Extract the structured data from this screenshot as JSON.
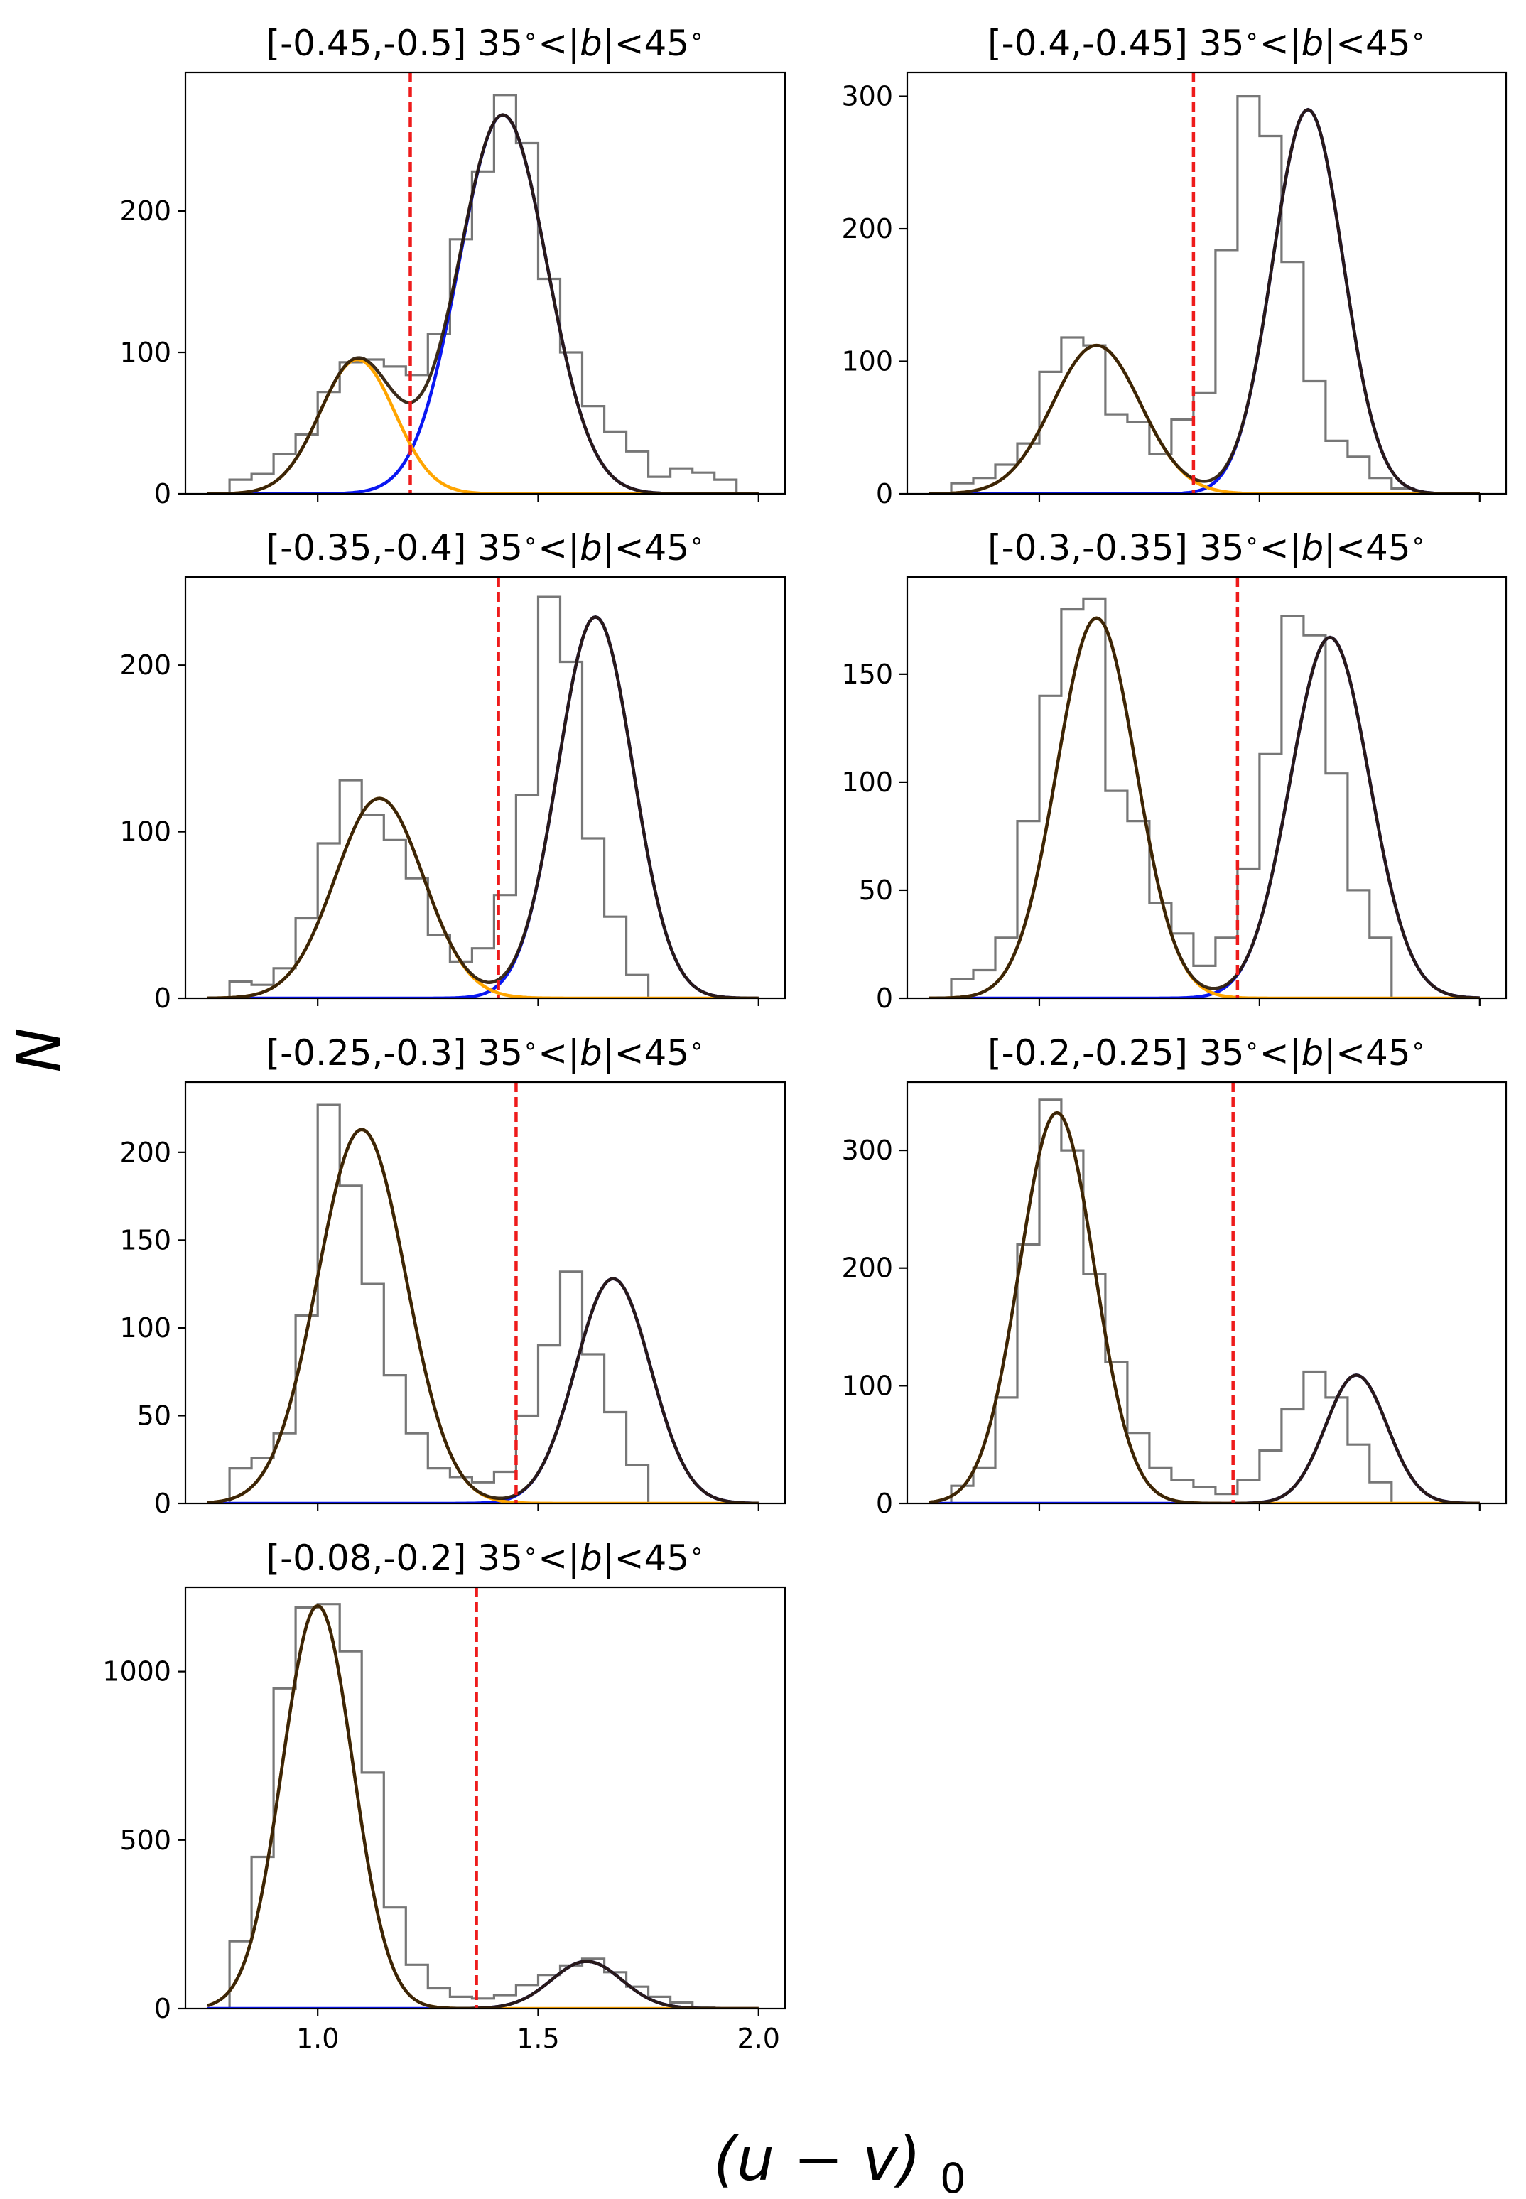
{
  "figure": {
    "ylabel": "N",
    "xlabel_main": "(u − v)",
    "xlabel_sub": "0"
  },
  "chart_data": [
    {
      "type": "histogram",
      "title": "[-0.45,-0.5] 35$^\\circ$<|$b$|<45$^\\circ$",
      "title_parts": {
        "range": "[-0.45,-0.5]",
        "lat": "35",
        "b": "b",
        "lat2": "45"
      },
      "xlim": [
        0.7,
        2.06
      ],
      "ylim": [
        0,
        298
      ],
      "yticks": [
        0,
        100,
        200
      ],
      "x_tick_labels_shown": false,
      "divider_x": 1.21,
      "bin_edges": [
        0.75,
        0.8,
        0.85,
        0.9,
        0.95,
        1.0,
        1.05,
        1.1,
        1.15,
        1.2,
        1.25,
        1.3,
        1.35,
        1.4,
        1.45,
        1.5,
        1.55,
        1.6,
        1.65,
        1.7,
        1.75,
        1.8,
        1.85,
        1.9,
        1.95,
        2.0
      ],
      "counts": [
        0,
        10,
        14,
        28,
        42,
        72,
        93,
        95,
        90,
        84,
        113,
        180,
        228,
        282,
        248,
        152,
        100,
        62,
        44,
        30,
        12,
        18,
        15,
        10,
        0
      ],
      "components": [
        {
          "name": "bluer",
          "mu": 1.09,
          "sigma": 0.085,
          "amplitude": 95
        },
        {
          "name": "redder",
          "mu": 1.42,
          "sigma": 0.1,
          "amplitude": 268
        }
      ]
    },
    {
      "type": "histogram",
      "title": "[-0.4,-0.45] 35$^\\circ$<|$b$|<45$^\\circ$",
      "title_parts": {
        "range": "[-0.4,-0.45]",
        "lat": "35",
        "b": "b",
        "lat2": "45"
      },
      "xlim": [
        0.7,
        2.06
      ],
      "ylim": [
        0,
        318
      ],
      "yticks": [
        0,
        100,
        200,
        300
      ],
      "x_tick_labels_shown": false,
      "divider_x": 1.35,
      "bin_edges": [
        0.75,
        0.8,
        0.85,
        0.9,
        0.95,
        1.0,
        1.05,
        1.1,
        1.15,
        1.2,
        1.25,
        1.3,
        1.35,
        1.4,
        1.45,
        1.5,
        1.55,
        1.6,
        1.65,
        1.7,
        1.75,
        1.8,
        1.85,
        1.9,
        1.95,
        2.0
      ],
      "counts": [
        0,
        8,
        12,
        22,
        38,
        92,
        118,
        112,
        60,
        54,
        30,
        56,
        76,
        184,
        300,
        270,
        175,
        85,
        40,
        28,
        12,
        4,
        0,
        0,
        0
      ],
      "components": [
        {
          "name": "bluer",
          "mu": 1.13,
          "sigma": 0.1,
          "amplitude": 112
        },
        {
          "name": "redder",
          "mu": 1.61,
          "sigma": 0.08,
          "amplitude": 290
        }
      ]
    },
    {
      "type": "histogram",
      "title": "[-0.35,-0.4] 35$^\\circ$<|$b$|<45$^\\circ$",
      "title_parts": {
        "range": "[-0.35,-0.4]",
        "lat": "35",
        "b": "b",
        "lat2": "45"
      },
      "xlim": [
        0.7,
        2.06
      ],
      "ylim": [
        0,
        253
      ],
      "yticks": [
        0,
        100,
        200
      ],
      "x_tick_labels_shown": false,
      "divider_x": 1.41,
      "bin_edges": [
        0.75,
        0.8,
        0.85,
        0.9,
        0.95,
        1.0,
        1.05,
        1.1,
        1.15,
        1.2,
        1.25,
        1.3,
        1.35,
        1.4,
        1.45,
        1.5,
        1.55,
        1.6,
        1.65,
        1.7,
        1.75,
        1.8,
        1.85,
        1.9,
        1.95,
        2.0
      ],
      "counts": [
        0,
        10,
        8,
        18,
        48,
        93,
        131,
        110,
        95,
        72,
        38,
        22,
        30,
        62,
        122,
        241,
        202,
        96,
        49,
        14,
        0,
        0,
        0,
        0,
        0
      ],
      "components": [
        {
          "name": "bluer",
          "mu": 1.14,
          "sigma": 0.1,
          "amplitude": 120
        },
        {
          "name": "redder",
          "mu": 1.63,
          "sigma": 0.085,
          "amplitude": 229
        }
      ]
    },
    {
      "type": "histogram",
      "title": "[-0.3,-0.35] 35$^\\circ$<|$b$|<45$^\\circ$",
      "title_parts": {
        "range": "[-0.3,-0.35]",
        "lat": "35",
        "b": "b",
        "lat2": "45"
      },
      "xlim": [
        0.7,
        2.06
      ],
      "ylim": [
        0,
        195
      ],
      "yticks": [
        0,
        50,
        100,
        150
      ],
      "x_tick_labels_shown": false,
      "divider_x": 1.45,
      "bin_edges": [
        0.75,
        0.8,
        0.85,
        0.9,
        0.95,
        1.0,
        1.05,
        1.1,
        1.15,
        1.2,
        1.25,
        1.3,
        1.35,
        1.4,
        1.45,
        1.5,
        1.55,
        1.6,
        1.65,
        1.7,
        1.75,
        1.8,
        1.85,
        1.9,
        1.95,
        2.0
      ],
      "counts": [
        0,
        9,
        13,
        28,
        82,
        140,
        180,
        185,
        96,
        82,
        44,
        30,
        15,
        28,
        60,
        113,
        177,
        168,
        104,
        50,
        28,
        0,
        0,
        0,
        0
      ],
      "components": [
        {
          "name": "bluer",
          "mu": 1.13,
          "sigma": 0.09,
          "amplitude": 176
        },
        {
          "name": "redder",
          "mu": 1.66,
          "sigma": 0.09,
          "amplitude": 167
        }
      ]
    },
    {
      "type": "histogram",
      "title": "[-0.25,-0.3] 35$^\\circ$<|$b$|<45$^\\circ$",
      "title_parts": {
        "range": "[-0.25,-0.3]",
        "lat": "35",
        "b": "b",
        "lat2": "45"
      },
      "xlim": [
        0.7,
        2.06
      ],
      "ylim": [
        0,
        240
      ],
      "yticks": [
        0,
        50,
        100,
        150,
        200
      ],
      "x_tick_labels_shown": false,
      "divider_x": 1.45,
      "bin_edges": [
        0.75,
        0.8,
        0.85,
        0.9,
        0.95,
        1.0,
        1.05,
        1.1,
        1.15,
        1.2,
        1.25,
        1.3,
        1.35,
        1.4,
        1.45,
        1.5,
        1.55,
        1.6,
        1.65,
        1.7,
        1.75,
        1.8,
        1.85,
        1.9,
        1.95,
        2.0
      ],
      "counts": [
        0,
        20,
        26,
        40,
        107,
        227,
        181,
        125,
        73,
        40,
        20,
        15,
        12,
        18,
        50,
        90,
        132,
        85,
        52,
        22,
        0,
        0,
        0,
        0,
        0
      ],
      "components": [
        {
          "name": "bluer",
          "mu": 1.1,
          "sigma": 0.1,
          "amplitude": 213
        },
        {
          "name": "redder",
          "mu": 1.67,
          "sigma": 0.085,
          "amplitude": 128
        }
      ]
    },
    {
      "type": "histogram",
      "title": "[-0.2,-0.25] 35$^\\circ$<|$b$|<45$^\\circ$",
      "title_parts": {
        "range": "[-0.2,-0.25]",
        "lat": "35",
        "b": "b",
        "lat2": "45"
      },
      "xlim": [
        0.7,
        2.06
      ],
      "ylim": [
        0,
        358
      ],
      "yticks": [
        0,
        100,
        200,
        300
      ],
      "x_tick_labels_shown": false,
      "divider_x": 1.44,
      "bin_edges": [
        0.75,
        0.8,
        0.85,
        0.9,
        0.95,
        1.0,
        1.05,
        1.1,
        1.15,
        1.2,
        1.25,
        1.3,
        1.35,
        1.4,
        1.45,
        1.5,
        1.55,
        1.6,
        1.65,
        1.7,
        1.75,
        1.8,
        1.85,
        1.9,
        1.95,
        2.0
      ],
      "counts": [
        0,
        15,
        30,
        90,
        220,
        343,
        300,
        195,
        120,
        60,
        30,
        20,
        14,
        8,
        20,
        45,
        80,
        112,
        90,
        50,
        18,
        0,
        0,
        0,
        0
      ],
      "components": [
        {
          "name": "bluer",
          "mu": 1.04,
          "sigma": 0.085,
          "amplitude": 332
        },
        {
          "name": "redder",
          "mu": 1.72,
          "sigma": 0.07,
          "amplitude": 109
        }
      ]
    },
    {
      "type": "histogram",
      "title": "[-0.08,-0.2] 35$^\\circ$<|$b$|<45$^\\circ$",
      "title_parts": {
        "range": "[-0.08,-0.2]",
        "lat": "35",
        "b": "b",
        "lat2": "45"
      },
      "xlim": [
        0.7,
        2.06
      ],
      "ylim": [
        0,
        1250
      ],
      "yticks": [
        0,
        500,
        1000
      ],
      "xticks": [
        1.0,
        1.5,
        2.0
      ],
      "x_tick_labels_shown": true,
      "divider_x": 1.36,
      "bin_edges": [
        0.75,
        0.8,
        0.85,
        0.9,
        0.95,
        1.0,
        1.05,
        1.1,
        1.15,
        1.2,
        1.25,
        1.3,
        1.35,
        1.4,
        1.45,
        1.5,
        1.55,
        1.6,
        1.65,
        1.7,
        1.75,
        1.8,
        1.85,
        1.9,
        1.95,
        2.0
      ],
      "counts": [
        0,
        200,
        450,
        950,
        1190,
        1200,
        1060,
        700,
        300,
        130,
        60,
        35,
        30,
        40,
        70,
        100,
        128,
        148,
        108,
        65,
        35,
        18,
        5,
        0,
        0
      ],
      "components": [
        {
          "name": "bluer",
          "mu": 1.0,
          "sigma": 0.08,
          "amplitude": 1195
        },
        {
          "name": "redder",
          "mu": 1.61,
          "sigma": 0.08,
          "amplitude": 140
        }
      ]
    }
  ]
}
